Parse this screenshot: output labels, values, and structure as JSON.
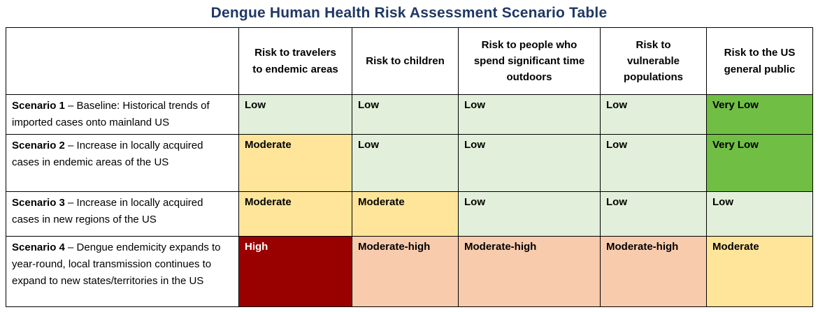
{
  "title": "Dengue Human Health Risk Assessment Scenario Table",
  "colors": {
    "title": "#1F3864",
    "low": "#E2EFDA",
    "very_low": "#70BF44",
    "moderate": "#FFE599",
    "moderate_high": "#F8CBAD",
    "high": "#990000",
    "high_text": "#FFFFFF",
    "default_text": "#000000",
    "border": "#000000"
  },
  "table": {
    "columns": [
      "",
      "Risk to travelers to endemic areas",
      "Risk to children",
      "Risk to people who spend significant time outdoors",
      "Risk to vulnerable populations",
      "Risk to the US general public"
    ],
    "rows": [
      {
        "label_bold": "Scenario 1",
        "label_rest": " – Baseline: Historical trends of imported cases onto mainland US",
        "cells": [
          {
            "text": "Low",
            "level": "low"
          },
          {
            "text": "Low",
            "level": "low"
          },
          {
            "text": "Low",
            "level": "low"
          },
          {
            "text": "Low",
            "level": "low"
          },
          {
            "text": "Very Low",
            "level": "very_low"
          }
        ]
      },
      {
        "label_bold": "Scenario 2",
        "label_rest": " – Increase in locally acquired cases in endemic areas of the US",
        "cells": [
          {
            "text": "Moderate",
            "level": "moderate"
          },
          {
            "text": "Low",
            "level": "low"
          },
          {
            "text": "Low",
            "level": "low"
          },
          {
            "text": "Low",
            "level": "low"
          },
          {
            "text": "Very Low",
            "level": "very_low"
          }
        ]
      },
      {
        "label_bold": "Scenario 3",
        "label_rest": " – Increase in locally acquired cases in new regions of the US",
        "cells": [
          {
            "text": "Moderate",
            "level": "moderate"
          },
          {
            "text": "Moderate",
            "level": "moderate"
          },
          {
            "text": "Low",
            "level": "low"
          },
          {
            "text": "Low",
            "level": "low"
          },
          {
            "text": "Low",
            "level": "low"
          }
        ]
      },
      {
        "label_bold": "Scenario 4",
        "label_rest": " – Dengue endemicity expands to year-round, local transmission continues to expand to new states/territories in the US",
        "cells": [
          {
            "text": "High",
            "level": "high"
          },
          {
            "text": "Moderate-high",
            "level": "moderate_high"
          },
          {
            "text": "Moderate-high",
            "level": "moderate_high"
          },
          {
            "text": "Moderate-high",
            "level": "moderate_high"
          },
          {
            "text": "Moderate",
            "level": "moderate"
          }
        ]
      }
    ]
  }
}
